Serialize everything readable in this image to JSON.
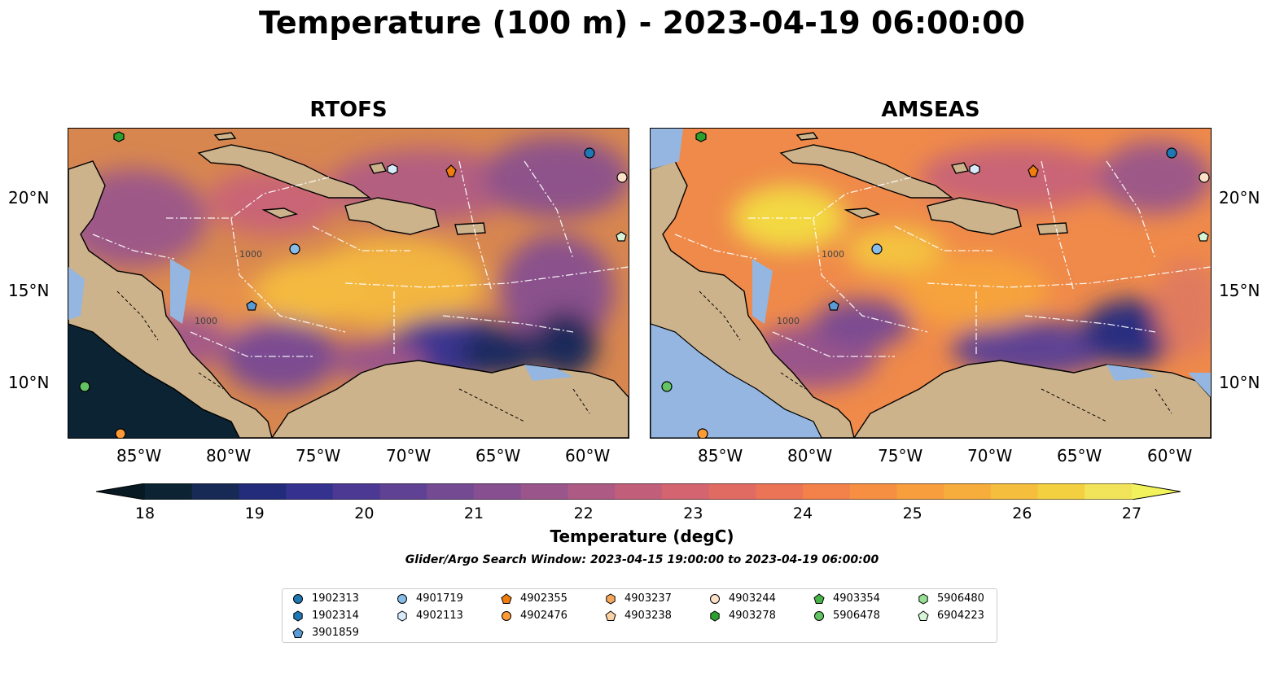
{
  "title": "Temperature (100 m) - 2023-04-19 06:00:00",
  "panels": [
    {
      "title": "RTOFS"
    },
    {
      "title": "AMSEAS"
    }
  ],
  "axes": {
    "lon_ticks": [
      "85°W",
      "80°W",
      "75°W",
      "70°W",
      "65°W",
      "60°W"
    ],
    "lat_ticks": [
      "20°N",
      "15°N",
      "10°N"
    ]
  },
  "contour_labels": [
    "1000",
    "1000",
    "1000",
    "1000"
  ],
  "colorbar": {
    "label": "Temperature (degC)",
    "ticks": [
      "18",
      "19",
      "20",
      "21",
      "22",
      "23",
      "24",
      "25",
      "26",
      "27"
    ],
    "colors": [
      "#0b2332",
      "#172a55",
      "#222c7a",
      "#35318f",
      "#4b3993",
      "#5f4293",
      "#744b92",
      "#874f8f",
      "#9a558a",
      "#ad5a84",
      "#c15f7b",
      "#d4646f",
      "#e06b63",
      "#ea7455",
      "#f2814a",
      "#f68f42",
      "#f89e3d",
      "#f7ad3b",
      "#f5be3c",
      "#f3d040",
      "#f2e45a"
    ],
    "under_color": "#071a24",
    "over_color": "#f2f25c"
  },
  "search_window": "Glider/Argo Search Window: 2023-04-15 19:00:00 to 2023-04-19 06:00:00",
  "legend": [
    {
      "id": "1902313",
      "marker": "circle",
      "color": "#1f77b4"
    },
    {
      "id": "1902314",
      "marker": "hexagon",
      "color": "#1f77b4"
    },
    {
      "id": "3901859",
      "marker": "pentagon",
      "color": "#5b9bd5"
    },
    {
      "id": "4901719",
      "marker": "circle",
      "color": "#87bde8"
    },
    {
      "id": "4902113",
      "marker": "hexagon",
      "color": "#d7ebfb"
    },
    {
      "id": "4902355",
      "marker": "pentagon",
      "color": "#f07d0e"
    },
    {
      "id": "4902476",
      "marker": "circle",
      "color": "#ff9a35"
    },
    {
      "id": "4903237",
      "marker": "hexagon",
      "color": "#f5a65b"
    },
    {
      "id": "4903238",
      "marker": "pentagon",
      "color": "#fcd2a5"
    },
    {
      "id": "4903244",
      "marker": "circle",
      "color": "#fce0c8"
    },
    {
      "id": "4903278",
      "marker": "hexagon",
      "color": "#2ca02c"
    },
    {
      "id": "4903354",
      "marker": "pentagon",
      "color": "#46b346"
    },
    {
      "id": "5906478",
      "marker": "circle",
      "color": "#62c462"
    },
    {
      "id": "5906480",
      "marker": "hexagon",
      "color": "#96e096"
    },
    {
      "id": "6904223",
      "marker": "pentagon",
      "color": "#d6f5d6"
    }
  ]
}
